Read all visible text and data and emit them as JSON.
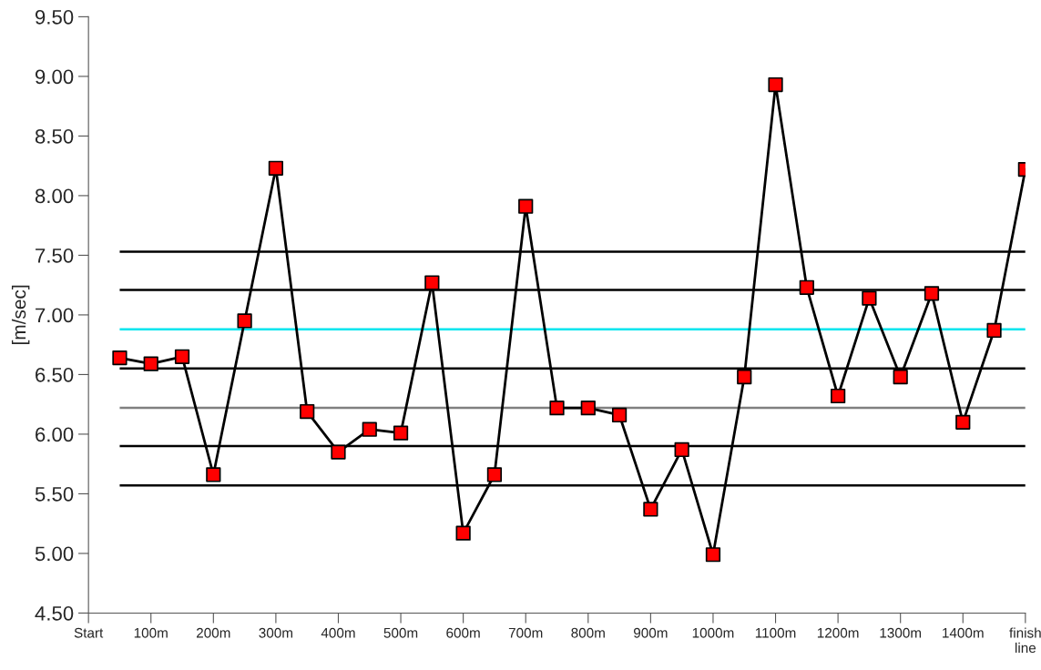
{
  "chart_data": {
    "type": "line",
    "ylabel": "[m/sec]",
    "x": [
      50,
      100,
      150,
      200,
      250,
      300,
      350,
      400,
      450,
      500,
      550,
      600,
      650,
      700,
      750,
      800,
      850,
      900,
      950,
      1000,
      1050,
      1100,
      1150,
      1200,
      1250,
      1300,
      1350,
      1400,
      1450,
      1500
    ],
    "series": [
      {
        "color": "#ff0000",
        "values": [
          6.64,
          6.59,
          6.65,
          5.66,
          6.95,
          8.23,
          6.19,
          5.85,
          6.04,
          6.01,
          7.27,
          5.17,
          5.66,
          7.91,
          6.22,
          6.22,
          6.16,
          5.37,
          5.87,
          4.99,
          6.48,
          8.93,
          7.23,
          6.32,
          7.14,
          6.48,
          7.18,
          6.1,
          6.87,
          8.22
        ]
      }
    ],
    "marker": "square",
    "line_style": "solid",
    "grid": false,
    "legend": false,
    "xlim": [
      0,
      1500
    ],
    "xticks": [
      {
        "value": 0,
        "label": "Start"
      },
      {
        "value": 100,
        "label": "100m"
      },
      {
        "value": 200,
        "label": "200m"
      },
      {
        "value": 300,
        "label": "300m"
      },
      {
        "value": 400,
        "label": "400m"
      },
      {
        "value": 500,
        "label": "500m"
      },
      {
        "value": 600,
        "label": "600m"
      },
      {
        "value": 700,
        "label": "700m"
      },
      {
        "value": 800,
        "label": "800m"
      },
      {
        "value": 900,
        "label": "900m"
      },
      {
        "value": 1000,
        "label": "1000m"
      },
      {
        "value": 1100,
        "label": "1100m"
      },
      {
        "value": 1200,
        "label": "1200m"
      },
      {
        "value": 1300,
        "label": "1300m"
      },
      {
        "value": 1400,
        "label": "1400m"
      },
      {
        "value": 1500,
        "label": "finish\nline"
      }
    ],
    "ylim": [
      4.5,
      9.5
    ],
    "yticks": [
      {
        "value": 4.5,
        "label": "4.50"
      },
      {
        "value": 5.0,
        "label": "5.00"
      },
      {
        "value": 5.5,
        "label": "5.50"
      },
      {
        "value": 6.0,
        "label": "6.00"
      },
      {
        "value": 6.5,
        "label": "6.50"
      },
      {
        "value": 7.0,
        "label": "7.00"
      },
      {
        "value": 7.5,
        "label": "7.50"
      },
      {
        "value": 8.0,
        "label": "8.00"
      },
      {
        "value": 8.5,
        "label": "8.50"
      },
      {
        "value": 9.0,
        "label": "9.00"
      },
      {
        "value": 9.5,
        "label": "9.50"
      }
    ],
    "ref_lines": [
      {
        "axis": "y",
        "value": 7.53,
        "color": "#000000"
      },
      {
        "axis": "y",
        "value": 7.21,
        "color": "#000000"
      },
      {
        "axis": "y",
        "value": 6.88,
        "color": "#00e5ee"
      },
      {
        "axis": "y",
        "value": 6.55,
        "color": "#000000"
      },
      {
        "axis": "y",
        "value": 6.22,
        "color": "#808080"
      },
      {
        "axis": "y",
        "value": 5.9,
        "color": "#000000"
      },
      {
        "axis": "y",
        "value": 5.57,
        "color": "#000000"
      }
    ]
  }
}
